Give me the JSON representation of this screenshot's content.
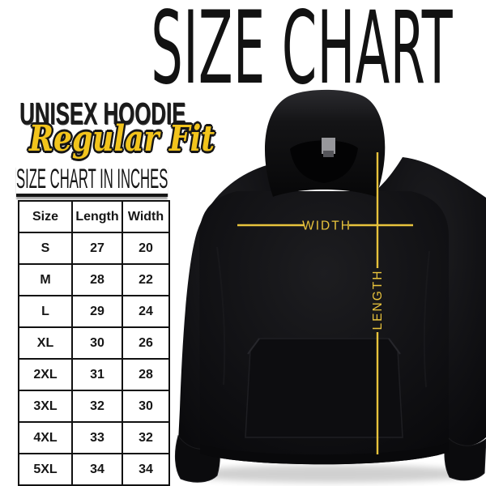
{
  "title": "SIZE CHART",
  "product": {
    "name": "UNISEX HOODIE",
    "fit": "Regular Fit",
    "table_heading": "SIZE CHART IN INCHES"
  },
  "size_table": {
    "columns": [
      "Size",
      "Length",
      "Width"
    ],
    "rows": [
      [
        "S",
        "27",
        "20"
      ],
      [
        "M",
        "28",
        "22"
      ],
      [
        "L",
        "29",
        "24"
      ],
      [
        "XL",
        "30",
        "26"
      ],
      [
        "2XL",
        "31",
        "28"
      ],
      [
        "3XL",
        "32",
        "30"
      ],
      [
        "4XL",
        "33",
        "32"
      ],
      [
        "5XL",
        "34",
        "34"
      ]
    ]
  },
  "diagram": {
    "garment": "black pullover hoodie",
    "width_label": "WIDTH",
    "length_label": "LENGTH"
  },
  "chart_data": {
    "type": "table",
    "title": "SIZE CHART",
    "subtitle": "UNISEX HOODIE - Regular Fit",
    "units": "inches",
    "columns": [
      "Size",
      "Length",
      "Width"
    ],
    "rows": [
      [
        "S",
        27,
        20
      ],
      [
        "M",
        28,
        22
      ],
      [
        "L",
        29,
        24
      ],
      [
        "XL",
        30,
        26
      ],
      [
        "2XL",
        31,
        28
      ],
      [
        "3XL",
        32,
        30
      ],
      [
        "4XL",
        33,
        32
      ],
      [
        "5XL",
        34,
        34
      ]
    ]
  },
  "colors": {
    "accent_yellow": "#E8C33C",
    "script_yellow": "#F2C41C",
    "ink": "#141414",
    "hoodie_black": "#0d0d10",
    "background": "#ffffff"
  }
}
